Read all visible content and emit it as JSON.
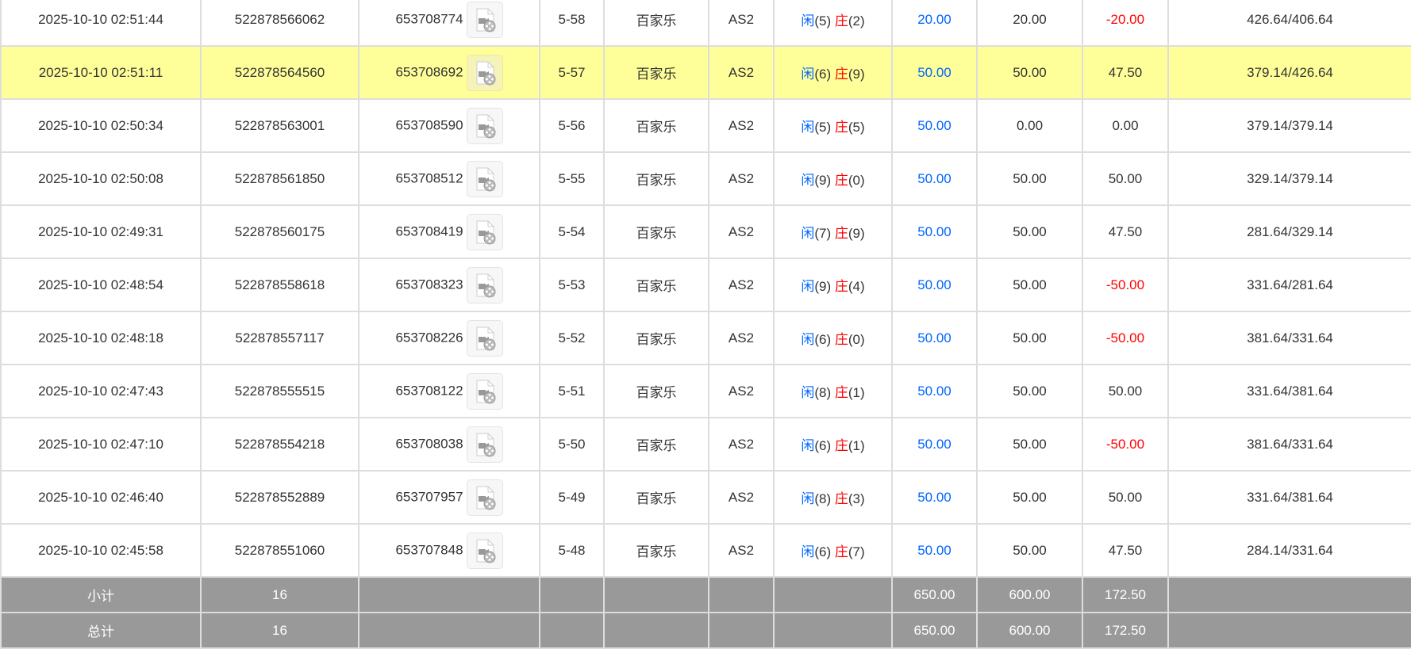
{
  "colors": {
    "blue": "#0066ff",
    "red": "#ff0000",
    "highlight": "#ffff99",
    "summary_bg": "#999999"
  },
  "player_label": "闲",
  "banker_label": "庄",
  "rows": [
    {
      "time": "2025-10-10 02:51:44",
      "bet_id": "522878566062",
      "round_id": "653708774",
      "shoe": "5-58",
      "game": "百家乐",
      "table": "AS2",
      "player": "(5)",
      "banker": "(2)",
      "bet": "20.00",
      "valid": "20.00",
      "win": "-20.00",
      "balance": "426.64/406.64",
      "neg": true
    },
    {
      "time": "2025-10-10 02:51:11",
      "bet_id": "522878564560",
      "round_id": "653708692",
      "shoe": "5-57",
      "game": "百家乐",
      "table": "AS2",
      "player": "(6)",
      "banker": "(9)",
      "bet": "50.00",
      "valid": "50.00",
      "win": "47.50",
      "balance": "379.14/426.64",
      "highlight": true
    },
    {
      "time": "2025-10-10 02:50:34",
      "bet_id": "522878563001",
      "round_id": "653708590",
      "shoe": "5-56",
      "game": "百家乐",
      "table": "AS2",
      "player": "(5)",
      "banker": "(5)",
      "bet": "50.00",
      "valid": "0.00",
      "win": "0.00",
      "balance": "379.14/379.14"
    },
    {
      "time": "2025-10-10 02:50:08",
      "bet_id": "522878561850",
      "round_id": "653708512",
      "shoe": "5-55",
      "game": "百家乐",
      "table": "AS2",
      "player": "(9)",
      "banker": "(0)",
      "bet": "50.00",
      "valid": "50.00",
      "win": "50.00",
      "balance": "329.14/379.14"
    },
    {
      "time": "2025-10-10 02:49:31",
      "bet_id": "522878560175",
      "round_id": "653708419",
      "shoe": "5-54",
      "game": "百家乐",
      "table": "AS2",
      "player": "(7)",
      "banker": "(9)",
      "bet": "50.00",
      "valid": "50.00",
      "win": "47.50",
      "balance": "281.64/329.14"
    },
    {
      "time": "2025-10-10 02:48:54",
      "bet_id": "522878558618",
      "round_id": "653708323",
      "shoe": "5-53",
      "game": "百家乐",
      "table": "AS2",
      "player": "(9)",
      "banker": "(4)",
      "bet": "50.00",
      "valid": "50.00",
      "win": "-50.00",
      "balance": "331.64/281.64",
      "neg": true
    },
    {
      "time": "2025-10-10 02:48:18",
      "bet_id": "522878557117",
      "round_id": "653708226",
      "shoe": "5-52",
      "game": "百家乐",
      "table": "AS2",
      "player": "(6)",
      "banker": "(0)",
      "bet": "50.00",
      "valid": "50.00",
      "win": "-50.00",
      "balance": "381.64/331.64",
      "neg": true
    },
    {
      "time": "2025-10-10 02:47:43",
      "bet_id": "522878555515",
      "round_id": "653708122",
      "shoe": "5-51",
      "game": "百家乐",
      "table": "AS2",
      "player": "(8)",
      "banker": "(1)",
      "bet": "50.00",
      "valid": "50.00",
      "win": "50.00",
      "balance": "331.64/381.64"
    },
    {
      "time": "2025-10-10 02:47:10",
      "bet_id": "522878554218",
      "round_id": "653708038",
      "shoe": "5-50",
      "game": "百家乐",
      "table": "AS2",
      "player": "(6)",
      "banker": "(1)",
      "bet": "50.00",
      "valid": "50.00",
      "win": "-50.00",
      "balance": "381.64/331.64",
      "neg": true
    },
    {
      "time": "2025-10-10 02:46:40",
      "bet_id": "522878552889",
      "round_id": "653707957",
      "shoe": "5-49",
      "game": "百家乐",
      "table": "AS2",
      "player": "(8)",
      "banker": "(3)",
      "bet": "50.00",
      "valid": "50.00",
      "win": "50.00",
      "balance": "331.64/381.64"
    },
    {
      "time": "2025-10-10 02:45:58",
      "bet_id": "522878551060",
      "round_id": "653707848",
      "shoe": "5-48",
      "game": "百家乐",
      "table": "AS2",
      "player": "(6)",
      "banker": "(7)",
      "bet": "50.00",
      "valid": "50.00",
      "win": "47.50",
      "balance": "284.14/331.64"
    }
  ],
  "subtotal": {
    "label": "小计",
    "count": "16",
    "bet": "650.00",
    "valid": "600.00",
    "win": "172.50"
  },
  "total": {
    "label": "总计",
    "count": "16",
    "bet": "650.00",
    "valid": "600.00",
    "win": "172.50"
  }
}
